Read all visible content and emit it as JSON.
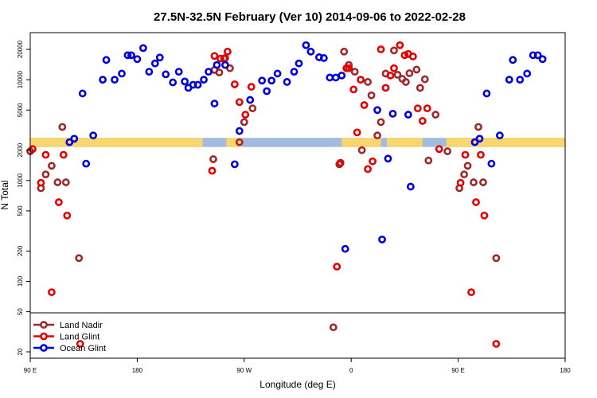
{
  "chart_data": {
    "type": "scatter",
    "title": "27.5N-32.5N February (Ver 10)   2014-09-06 to 2022-02-28",
    "xlabel": "Longitude (deg E)",
    "ylabel": "N Total",
    "x_ticks": [
      {
        "value": 90,
        "label": "90 E"
      },
      {
        "value": 180,
        "label": "180"
      },
      {
        "value": 270,
        "label": "90 W"
      },
      {
        "value": 360,
        "label": "0"
      },
      {
        "value": 450,
        "label": "90 E"
      },
      {
        "value": 540,
        "label": "180"
      }
    ],
    "xlim": [
      90,
      540
    ],
    "y_ticks": [
      20,
      50,
      100,
      200,
      500,
      1000,
      2000,
      5000,
      10000,
      20000
    ],
    "ylim": [
      17,
      30000
    ],
    "y_scale": "log",
    "grid": false,
    "legend_placement": "bottom-left",
    "band": {
      "ymin": 2150,
      "ymax": 2650,
      "color_land": "#f9d56e",
      "color_ocean": "#a3bbdf"
    },
    "land_segments": [
      [
        90,
        235
      ],
      [
        255,
        268
      ],
      [
        352,
        385
      ],
      [
        390,
        420
      ],
      [
        440,
        540
      ]
    ],
    "series": [
      {
        "name": "Land Nadir",
        "color": "#a0282a",
        "points": [
          [
            90,
            1950
          ],
          [
            99,
            840
          ],
          [
            103,
            1150
          ],
          [
            108,
            1400
          ],
          [
            113,
            960
          ],
          [
            117,
            3400
          ],
          [
            120,
            960
          ],
          [
            131,
            170
          ],
          [
            244,
            1630
          ],
          [
            245,
            12500
          ],
          [
            249,
            11800
          ],
          [
            253,
            16200
          ],
          [
            258,
            13000
          ],
          [
            266,
            2400
          ],
          [
            270,
            3800
          ],
          [
            277,
            5200
          ],
          [
            345,
            35
          ],
          [
            350,
            1450
          ],
          [
            354,
            19000
          ],
          [
            358,
            14000
          ],
          [
            363,
            12000
          ],
          [
            369,
            2000
          ],
          [
            374,
            9500
          ],
          [
            377,
            7000
          ],
          [
            382,
            2800
          ],
          [
            385,
            3800
          ],
          [
            389,
            11500
          ],
          [
            396,
            19500
          ],
          [
            399,
            11200
          ],
          [
            403,
            10200
          ],
          [
            406,
            9500
          ],
          [
            409,
            11600
          ],
          [
            415,
            12600
          ],
          [
            418,
            8300
          ],
          [
            422,
            10100
          ],
          [
            425,
            1580
          ],
          [
            431,
            4500
          ],
          [
            441,
            1950
          ],
          [
            451,
            840
          ],
          [
            455,
            1150
          ],
          [
            458,
            1400
          ],
          [
            463,
            960
          ],
          [
            467,
            3400
          ],
          [
            471,
            960
          ],
          [
            482,
            170
          ]
        ]
      },
      {
        "name": "Land Glint",
        "color": "#e60000",
        "points": [
          [
            92,
            2050
          ],
          [
            99,
            950
          ],
          [
            103,
            1800
          ],
          [
            108,
            78
          ],
          [
            114,
            610
          ],
          [
            118,
            1800
          ],
          [
            121,
            450
          ],
          [
            132,
            24
          ],
          [
            243,
            1250
          ],
          [
            245,
            17200
          ],
          [
            250,
            16200
          ],
          [
            254,
            16400
          ],
          [
            256,
            19000
          ],
          [
            262,
            9000
          ],
          [
            266,
            6000
          ],
          [
            271,
            4500
          ],
          [
            276,
            8500
          ],
          [
            348,
            140
          ],
          [
            351,
            1500
          ],
          [
            356,
            13000
          ],
          [
            358,
            13000
          ],
          [
            362,
            8000
          ],
          [
            365,
            3000
          ],
          [
            368,
            10000
          ],
          [
            371,
            5600
          ],
          [
            374,
            1300
          ],
          [
            378,
            1550
          ],
          [
            385,
            20000
          ],
          [
            389,
            8300
          ],
          [
            393,
            11000
          ],
          [
            396,
            13000
          ],
          [
            401,
            22000
          ],
          [
            405,
            17500
          ],
          [
            408,
            18000
          ],
          [
            412,
            17000
          ],
          [
            416,
            5200
          ],
          [
            420,
            3900
          ],
          [
            424,
            5200
          ],
          [
            434,
            2050
          ],
          [
            452,
            950
          ],
          [
            456,
            1800
          ],
          [
            461,
            78
          ],
          [
            465,
            610
          ],
          [
            469,
            1800
          ],
          [
            472,
            450
          ],
          [
            482,
            24
          ]
        ]
      },
      {
        "name": "Ocean Glint",
        "color": "#0000e0",
        "points": [
          [
            123,
            2400
          ],
          [
            127,
            2600
          ],
          [
            134,
            7300
          ],
          [
            137,
            1470
          ],
          [
            143,
            2800
          ],
          [
            151,
            10000
          ],
          [
            154,
            15700
          ],
          [
            161,
            10000
          ],
          [
            167,
            11500
          ],
          [
            172,
            17500
          ],
          [
            175,
            17500
          ],
          [
            180,
            16000
          ],
          [
            185,
            20600
          ],
          [
            190,
            12000
          ],
          [
            195,
            14500
          ],
          [
            199,
            16600
          ],
          [
            204,
            11300
          ],
          [
            210,
            9400
          ],
          [
            215,
            12000
          ],
          [
            220,
            9600
          ],
          [
            223,
            8300
          ],
          [
            227,
            8900
          ],
          [
            231,
            8900
          ],
          [
            236,
            10000
          ],
          [
            240,
            12000
          ],
          [
            245,
            5800
          ],
          [
            247,
            14000
          ],
          [
            254,
            14000
          ],
          [
            262,
            1450
          ],
          [
            266,
            3100
          ],
          [
            275,
            6300
          ],
          [
            285,
            9800
          ],
          [
            289,
            7700
          ],
          [
            293,
            9800
          ],
          [
            298,
            11500
          ],
          [
            306,
            9500
          ],
          [
            312,
            12000
          ],
          [
            316,
            14500
          ],
          [
            322,
            22000
          ],
          [
            326,
            19000
          ],
          [
            333,
            16700
          ],
          [
            337,
            16400
          ],
          [
            342,
            10500
          ],
          [
            347,
            10500
          ],
          [
            352,
            11000
          ],
          [
            355,
            210
          ],
          [
            382,
            5000
          ],
          [
            386,
            260
          ],
          [
            391,
            1650
          ],
          [
            395,
            4600
          ],
          [
            408,
            4500
          ],
          [
            410,
            870
          ],
          [
            464,
            2400
          ],
          [
            468,
            2600
          ],
          [
            474,
            7300
          ],
          [
            478,
            1470
          ],
          [
            485,
            2800
          ],
          [
            493,
            10000
          ],
          [
            496,
            15700
          ],
          [
            502,
            10000
          ],
          [
            508,
            11500
          ],
          [
            513,
            17500
          ],
          [
            517,
            17500
          ],
          [
            521,
            16000
          ]
        ]
      }
    ]
  }
}
